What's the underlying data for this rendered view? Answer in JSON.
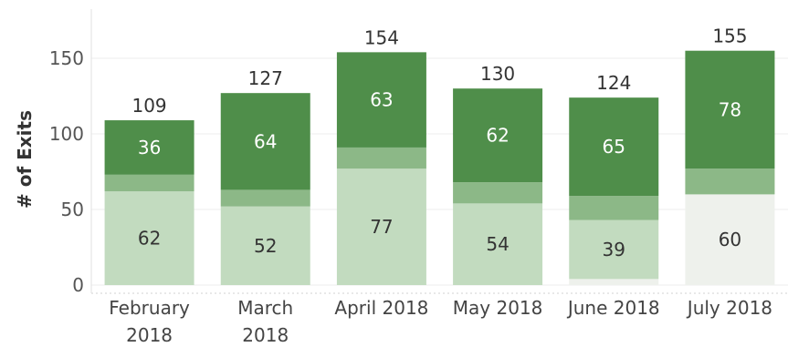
{
  "chart_data": {
    "type": "bar",
    "stacked": true,
    "ylabel": "# of Exits",
    "ylim": [
      -10,
      170
    ],
    "yticks": [
      0,
      50,
      100,
      150
    ],
    "grid": "horizontal",
    "categories": [
      [
        "February",
        "2018"
      ],
      [
        "March",
        "2018"
      ],
      [
        "April 2018"
      ],
      [
        "May 2018"
      ],
      [
        "June 2018"
      ],
      [
        "July 2018"
      ]
    ],
    "series": [
      {
        "values": [
          0,
          0,
          0,
          0,
          4,
          60
        ],
        "color": "#eef1ec"
      },
      {
        "values": [
          62,
          52,
          77,
          54,
          39,
          0
        ],
        "color": "#c2dbbf"
      },
      {
        "values": [
          11,
          11,
          14,
          14,
          16,
          17
        ],
        "color": "#8cb887"
      },
      {
        "values": [
          36,
          64,
          63,
          62,
          65,
          78
        ],
        "color": "#4f8e4a"
      }
    ],
    "segment_labels": [
      {
        "series": 1,
        "values": [
          62,
          52,
          77,
          54,
          39,
          null
        ]
      },
      {
        "series": 0,
        "values": [
          null,
          null,
          null,
          null,
          null,
          60
        ]
      },
      {
        "series": 3,
        "values": [
          36,
          64,
          63,
          62,
          65,
          78
        ]
      }
    ],
    "totals": [
      109,
      127,
      154,
      130,
      124,
      155
    ]
  }
}
